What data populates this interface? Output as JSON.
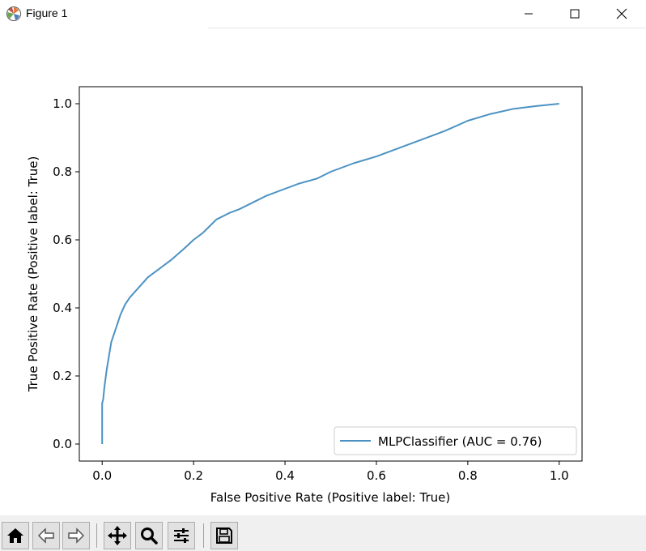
{
  "window": {
    "title": "Figure 1",
    "icon": "matplotlib-logo-icon",
    "controls": [
      "minimize-icon",
      "maximize-icon",
      "close-icon"
    ]
  },
  "toolbar": {
    "buttons": [
      {
        "name": "home-button",
        "icon": "home-icon"
      },
      {
        "name": "back-button",
        "icon": "arrow-left-icon"
      },
      {
        "name": "forward-button",
        "icon": "arrow-right-icon"
      },
      {
        "name": "pan-button",
        "icon": "move-icon"
      },
      {
        "name": "zoom-button",
        "icon": "magnifier-icon"
      },
      {
        "name": "subplots-button",
        "icon": "sliders-icon"
      },
      {
        "name": "save-button",
        "icon": "floppy-disk-icon"
      }
    ]
  },
  "chart_data": {
    "type": "line",
    "title": "",
    "xlabel": "False Positive Rate (Positive label: True)",
    "ylabel": "True Positive Rate (Positive label: True)",
    "xlim": [
      -0.05,
      1.05
    ],
    "ylim": [
      -0.05,
      1.05
    ],
    "xticks": [
      0.0,
      0.2,
      0.4,
      0.6,
      0.8,
      1.0
    ],
    "xtick_labels": [
      "0.0",
      "0.2",
      "0.4",
      "0.6",
      "0.8",
      "1.0"
    ],
    "yticks": [
      0.0,
      0.2,
      0.4,
      0.6,
      0.8,
      1.0
    ],
    "ytick_labels": [
      "0.0",
      "0.2",
      "0.4",
      "0.6",
      "0.8",
      "1.0"
    ],
    "grid": false,
    "legend_position": "lower-right",
    "series": [
      {
        "name": "MLPClassifier (AUC = 0.76)",
        "color": "#1f77b4",
        "x": [
          0.0,
          0.0,
          0.002,
          0.005,
          0.01,
          0.015,
          0.02,
          0.03,
          0.04,
          0.05,
          0.06,
          0.08,
          0.1,
          0.12,
          0.15,
          0.18,
          0.2,
          0.22,
          0.25,
          0.28,
          0.3,
          0.33,
          0.36,
          0.4,
          0.43,
          0.47,
          0.5,
          0.55,
          0.6,
          0.65,
          0.7,
          0.75,
          0.8,
          0.85,
          0.9,
          0.95,
          1.0
        ],
        "y": [
          0.0,
          0.12,
          0.13,
          0.17,
          0.22,
          0.26,
          0.3,
          0.34,
          0.38,
          0.41,
          0.43,
          0.46,
          0.49,
          0.51,
          0.54,
          0.575,
          0.6,
          0.62,
          0.66,
          0.68,
          0.69,
          0.71,
          0.73,
          0.75,
          0.765,
          0.78,
          0.8,
          0.825,
          0.845,
          0.87,
          0.895,
          0.92,
          0.95,
          0.97,
          0.985,
          0.993,
          1.0
        ]
      }
    ]
  }
}
